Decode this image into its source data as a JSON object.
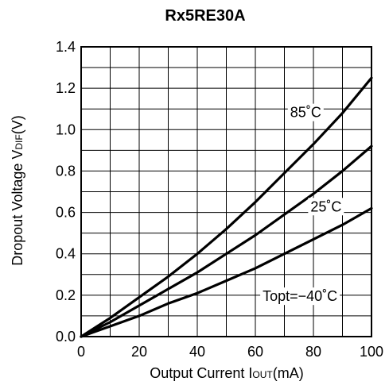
{
  "chart_data": {
    "type": "line",
    "title": "Rx5RE30A",
    "xlabel": {
      "prefix": "Output Current I",
      "subscript": "OUT",
      "suffix": "(mA)"
    },
    "ylabel": {
      "prefix": "Dropout Voltage V",
      "subscript": "DIF",
      "suffix": "(V)"
    },
    "xlim": [
      0,
      100
    ],
    "ylim": [
      0,
      1.4
    ],
    "xticks": [
      "0",
      "20",
      "40",
      "60",
      "80",
      "100"
    ],
    "yticks": [
      "0.0",
      "0.2",
      "0.4",
      "0.6",
      "0.8",
      "1.0",
      "1.2",
      "1.4"
    ],
    "grid": true,
    "series": [
      {
        "name": "85˚C",
        "x": [
          0,
          10,
          20,
          30,
          40,
          50,
          60,
          70,
          80,
          90,
          100
        ],
        "y": [
          0,
          0.09,
          0.19,
          0.29,
          0.4,
          0.52,
          0.65,
          0.79,
          0.93,
          1.08,
          1.25
        ]
      },
      {
        "name": "25˚C",
        "x": [
          0,
          10,
          20,
          30,
          40,
          50,
          60,
          70,
          80,
          90,
          100
        ],
        "y": [
          0,
          0.07,
          0.15,
          0.23,
          0.31,
          0.4,
          0.49,
          0.59,
          0.69,
          0.8,
          0.92
        ]
      },
      {
        "name": "Topt=−40˚C",
        "x": [
          0,
          10,
          20,
          30,
          40,
          50,
          60,
          70,
          80,
          90,
          100
        ],
        "y": [
          0,
          0.05,
          0.1,
          0.16,
          0.21,
          0.27,
          0.33,
          0.4,
          0.47,
          0.54,
          0.62
        ]
      }
    ]
  }
}
